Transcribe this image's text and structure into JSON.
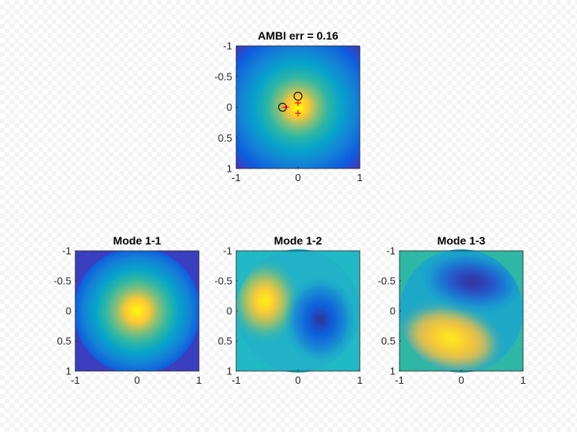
{
  "chart_data": [
    {
      "type": "heatmap",
      "title": "AMBI err = 0.16",
      "xlim": [
        -1,
        1
      ],
      "ylim": [
        -1,
        1
      ],
      "y_direction": "reversed",
      "xticks": [
        "-1",
        "0",
        "1"
      ],
      "yticks": [
        "-1",
        "-0.5",
        "0",
        "0.5",
        "1"
      ],
      "colormap": "parula",
      "field": "gaussian beam centered near (0, 0)",
      "markers": {
        "circles_black": [
          {
            "x": -0.25,
            "y": 0.0
          },
          {
            "x": 0.0,
            "y": -0.18
          }
        ],
        "circle_yellow": [
          {
            "x": 0.0,
            "y": 0.07
          }
        ],
        "plus_red": [
          {
            "x": -0.2,
            "y": 0.0
          },
          {
            "x": 0.0,
            "y": -0.07
          },
          {
            "x": 0.0,
            "y": 0.1
          }
        ]
      }
    },
    {
      "type": "heatmap",
      "title": "Mode 1-1",
      "xlim": [
        -1,
        1
      ],
      "ylim": [
        -1,
        1
      ],
      "y_direction": "reversed",
      "xticks": [
        "-1",
        "0",
        "1"
      ],
      "yticks": [
        "-1",
        "-0.5",
        "0",
        "0.5",
        "1"
      ],
      "colormap": "parula"
    },
    {
      "type": "heatmap",
      "title": "Mode 1-2",
      "xlim": [
        -1,
        1
      ],
      "ylim": [
        -1,
        1
      ],
      "y_direction": "reversed",
      "xticks": [
        "-1",
        "0",
        "1"
      ],
      "yticks": [
        "-1",
        "-0.5",
        "0",
        "0.5",
        "1"
      ],
      "colormap": "parula"
    },
    {
      "type": "heatmap",
      "title": "Mode 1-3",
      "xlim": [
        -1,
        1
      ],
      "ylim": [
        -1,
        1
      ],
      "y_direction": "reversed",
      "xticks": [
        "-1",
        "0",
        "1"
      ],
      "yticks": [
        "-1",
        "-0.5",
        "0",
        "0.5",
        "1"
      ],
      "colormap": "parula"
    }
  ],
  "colors": {
    "parula": [
      "#352A87",
      "#0F5CDD",
      "#1481D6",
      "#06A4CA",
      "#2EB7A4",
      "#87BF77",
      "#D1BB59",
      "#FEC832",
      "#F9FB0E"
    ],
    "circle": "#000000",
    "circle_highlight": "#ffff00",
    "plus": "#ff0000"
  }
}
